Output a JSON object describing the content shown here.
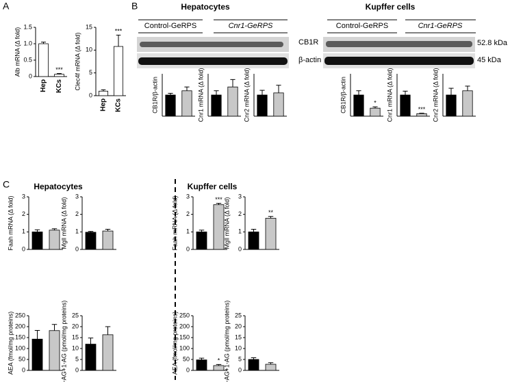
{
  "figure_texts": {
    "panel_a": "A",
    "panel_b": "B",
    "panel_c": "C",
    "b_hep_title": "Hepatocytes",
    "b_kc_title": "Kupffer cells",
    "b_hep_control": "Control-GeRPS",
    "b_hep_cnr1": "Cnr1-GeRPS",
    "b_kc_control": "Control-GeRPS",
    "b_kc_cnr1": "Cnr1-GeRPS",
    "band_cb1r": "CB1R",
    "band_actin": "β-actin",
    "kda_cb1r": "52.8 kDa",
    "kda_actin": "45 kDa",
    "c_hep_title": "Hepatocytes",
    "c_kc_title": "Kupffer cells"
  },
  "chart_data": [
    {
      "type": "bar",
      "ylabel": "Alb mRNA (Δ fold)",
      "categories": [
        "Hep",
        "KCs"
      ],
      "values": [
        1.0,
        0.07
      ],
      "errors": [
        0.05,
        0.02
      ],
      "colors": [
        "#ffffff",
        "#ffffff"
      ],
      "ylim": [
        0,
        1.5
      ],
      "yticks": [
        0,
        0.5,
        {
          "value": 1,
          "label": "1.0"
        },
        1.5
      ],
      "annotations": [
        {
          "index": 1,
          "text": "***"
        }
      ]
    },
    {
      "type": "bar",
      "ylabel": "Clec4f mRNA (Δ fold)",
      "categories": [
        "Hep",
        "KCs"
      ],
      "values": [
        1.0,
        10.8
      ],
      "errors": [
        0.3,
        2.5
      ],
      "colors": [
        "#ffffff",
        "#ffffff"
      ],
      "ylim": [
        0,
        15
      ],
      "yticks": [
        0,
        5,
        10,
        15
      ],
      "annotations": [
        {
          "index": 1,
          "text": "***"
        }
      ]
    },
    {
      "type": "bar",
      "ylabel": "CB1R/β-actin",
      "categories": [
        null,
        null
      ],
      "values": [
        1.0,
        1.2
      ],
      "errors": [
        0.08,
        0.18
      ],
      "colors": [
        "#000000",
        "#c8c8c8"
      ],
      "ylim": [
        0,
        2
      ]
    },
    {
      "type": "bar",
      "ylabel": "Cnr1 mRNA (Δ fold)",
      "categories": [
        null,
        null
      ],
      "values": [
        1.0,
        1.38
      ],
      "errors": [
        0.2,
        0.35
      ],
      "colors": [
        "#000000",
        "#c8c8c8"
      ],
      "ylim": [
        0,
        2
      ]
    },
    {
      "type": "bar",
      "ylabel": "Cnr2 mRNA (Δ fold)",
      "categories": [
        null,
        null
      ],
      "values": [
        1.0,
        1.1
      ],
      "errors": [
        0.22,
        0.36
      ],
      "colors": [
        "#000000",
        "#c8c8c8"
      ],
      "ylim": [
        0,
        2
      ]
    },
    {
      "type": "bar",
      "ylabel": "CB1R/β-actin",
      "categories": [
        null,
        null
      ],
      "values": [
        1.0,
        0.38
      ],
      "errors": [
        0.2,
        0.06
      ],
      "colors": [
        "#000000",
        "#c8c8c8"
      ],
      "ylim": [
        0,
        2
      ],
      "annotations": [
        {
          "index": 1,
          "text": "*"
        }
      ]
    },
    {
      "type": "bar",
      "ylabel": "Cnr1 mRNA (Δ fold)",
      "categories": [
        null,
        null
      ],
      "values": [
        1.0,
        0.12
      ],
      "errors": [
        0.18,
        0.02
      ],
      "colors": [
        "#000000",
        "#c8c8c8"
      ],
      "ylim": [
        0,
        2
      ],
      "annotations": [
        {
          "index": 1,
          "text": "***"
        }
      ]
    },
    {
      "type": "bar",
      "ylabel": "Cnr2 mRNA (Δ fold)",
      "categories": [
        null,
        null
      ],
      "values": [
        1.0,
        1.2
      ],
      "errors": [
        0.32,
        0.22
      ],
      "colors": [
        "#000000",
        "#c8c8c8"
      ],
      "ylim": [
        0,
        2
      ]
    },
    {
      "type": "bar",
      "ylabel": "Faah mRNA (Δ fold)",
      "categories": [
        null,
        null
      ],
      "values": [
        1.0,
        1.1
      ],
      "errors": [
        0.12,
        0.08
      ],
      "colors": [
        "#000000",
        "#c8c8c8"
      ],
      "ylim": [
        0,
        3
      ],
      "yticks": [
        0,
        1,
        2,
        3
      ]
    },
    {
      "type": "bar",
      "ylabel": "Mgll mRNA (Δ fold)",
      "categories": [
        null,
        null
      ],
      "values": [
        0.98,
        1.05
      ],
      "errors": [
        0.05,
        0.1
      ],
      "colors": [
        "#000000",
        "#c8c8c8"
      ],
      "ylim": [
        0,
        3
      ],
      "yticks": [
        0,
        1,
        2,
        3
      ]
    },
    {
      "type": "bar",
      "ylabel": "Faah mRNA (Δ fold)",
      "categories": [
        null,
        null
      ],
      "values": [
        1.0,
        2.55
      ],
      "errors": [
        0.1,
        0.08
      ],
      "colors": [
        "#000000",
        "#c8c8c8"
      ],
      "ylim": [
        0,
        3
      ],
      "yticks": [
        0,
        1,
        2,
        3
      ],
      "annotations": [
        {
          "index": 1,
          "text": "***"
        }
      ]
    },
    {
      "type": "bar",
      "ylabel": "Mgll mRNA (Δ fold)",
      "categories": [
        null,
        null
      ],
      "values": [
        1.0,
        1.78
      ],
      "errors": [
        0.15,
        0.1
      ],
      "colors": [
        "#000000",
        "#c8c8c8"
      ],
      "ylim": [
        0,
        3
      ],
      "yticks": [
        0,
        1,
        2,
        3
      ],
      "annotations": [
        {
          "index": 1,
          "text": "**"
        }
      ]
    },
    {
      "type": "bar",
      "ylabel": "AEA (fmol/mg proteins)",
      "categories": [
        null,
        null
      ],
      "values": [
        143,
        182
      ],
      "errors": [
        40,
        28
      ],
      "colors": [
        "#000000",
        "#c8c8c8"
      ],
      "ylim": [
        0,
        250
      ],
      "yticks": [
        0,
        50,
        100,
        150,
        200,
        250
      ]
    },
    {
      "type": "bar",
      "ylabel": "2-AG+1-AG (pmol/mg proteins)",
      "categories": [
        null,
        null
      ],
      "values": [
        12,
        16.3
      ],
      "errors": [
        2.8,
        3.7
      ],
      "colors": [
        "#000000",
        "#c8c8c8"
      ],
      "ylim": [
        0,
        25
      ],
      "yticks": [
        0,
        5,
        10,
        15,
        20,
        25
      ]
    },
    {
      "type": "bar",
      "ylabel": "AEA (fmol/mg proteins)",
      "categories": [
        null,
        null
      ],
      "values": [
        48,
        22
      ],
      "errors": [
        8,
        5
      ],
      "colors": [
        "#000000",
        "#c8c8c8"
      ],
      "ylim": [
        0,
        250
      ],
      "yticks": [
        0,
        50,
        100,
        150,
        200,
        250
      ],
      "annotations": [
        {
          "index": 1,
          "text": "*"
        }
      ]
    },
    {
      "type": "bar",
      "ylabel": "2-AG+1-AG (pmol/mg proteins)",
      "categories": [
        null,
        null
      ],
      "values": [
        5,
        2.8
      ],
      "errors": [
        0.8,
        0.7
      ],
      "colors": [
        "#000000",
        "#c8c8c8"
      ],
      "ylim": [
        0,
        25
      ],
      "yticks": [
        0,
        5,
        10,
        15,
        20,
        25
      ]
    }
  ]
}
